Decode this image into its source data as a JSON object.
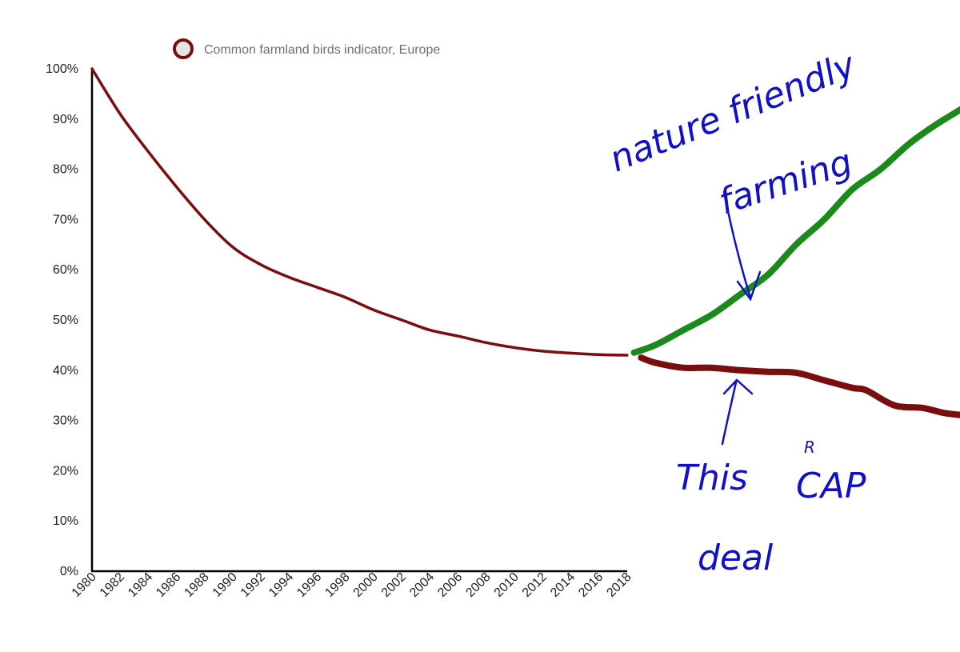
{
  "chart_data": {
    "type": "line",
    "title": "",
    "xlabel": "",
    "ylabel": "",
    "xlim": [
      1980,
      2018
    ],
    "ylim": [
      0,
      100
    ],
    "x_ticks": [
      "1980",
      "1982",
      "1984",
      "1986",
      "1988",
      "1990",
      "1992",
      "1994",
      "1996",
      "1998",
      "2000",
      "2002",
      "2004",
      "2006",
      "2008",
      "2010",
      "2012",
      "2014",
      "2016",
      "2018"
    ],
    "y_ticks": [
      "0%",
      "10%",
      "20%",
      "30%",
      "40%",
      "50%",
      "60%",
      "70%",
      "80%",
      "90%",
      "100%"
    ],
    "grid": false,
    "legend": {
      "placement": "top-center",
      "entries": [
        {
          "label": "Common farmland birds indicator, Europe",
          "color": "#7a0d0d"
        }
      ]
    },
    "series": [
      {
        "name": "Common farmland birds indicator, Europe",
        "color": "#7a0d0d",
        "x": [
          1980,
          1982,
          1984,
          1986,
          1988,
          1990,
          1992,
          1994,
          1996,
          1998,
          2000,
          2002,
          2004,
          2006,
          2008,
          2010,
          2012,
          2014,
          2016,
          2018
        ],
        "values": [
          100,
          91,
          83.5,
          76.5,
          70,
          64.5,
          61,
          58.5,
          56.5,
          54.5,
          52,
          50,
          48,
          46.8,
          45.5,
          44.5,
          43.8,
          43.4,
          43.1,
          43
        ]
      }
    ],
    "annotations": {
      "green_projection": {
        "color": "#1a8a1a",
        "x": [
          2018.5,
          2020,
          2022,
          2024,
          2026,
          2028,
          2030,
          2032,
          2034,
          2036,
          2038,
          2040,
          2042,
          2042.9
        ],
        "values": [
          43.5,
          45,
          48,
          51,
          55,
          59,
          65,
          70,
          76,
          80,
          85,
          89,
          92.5,
          95
        ]
      },
      "red_projection": {
        "color": "#7a0d0d",
        "x": [
          2019,
          2020,
          2022,
          2024,
          2026,
          2028,
          2030,
          2032,
          2034,
          2035,
          2037,
          2039,
          2040.5,
          2042
        ],
        "values": [
          42.5,
          41.5,
          40.5,
          40.5,
          40,
          39.7,
          39.5,
          38,
          36.5,
          36,
          33,
          32.5,
          31.5,
          31
        ]
      },
      "text_top": [
        "nature friendly",
        "farming"
      ],
      "text_bottom": [
        "This",
        "CAP",
        "R",
        "deal"
      ]
    },
    "colors": {
      "axis": "#000000",
      "handwriting": "#1010c8"
    }
  }
}
